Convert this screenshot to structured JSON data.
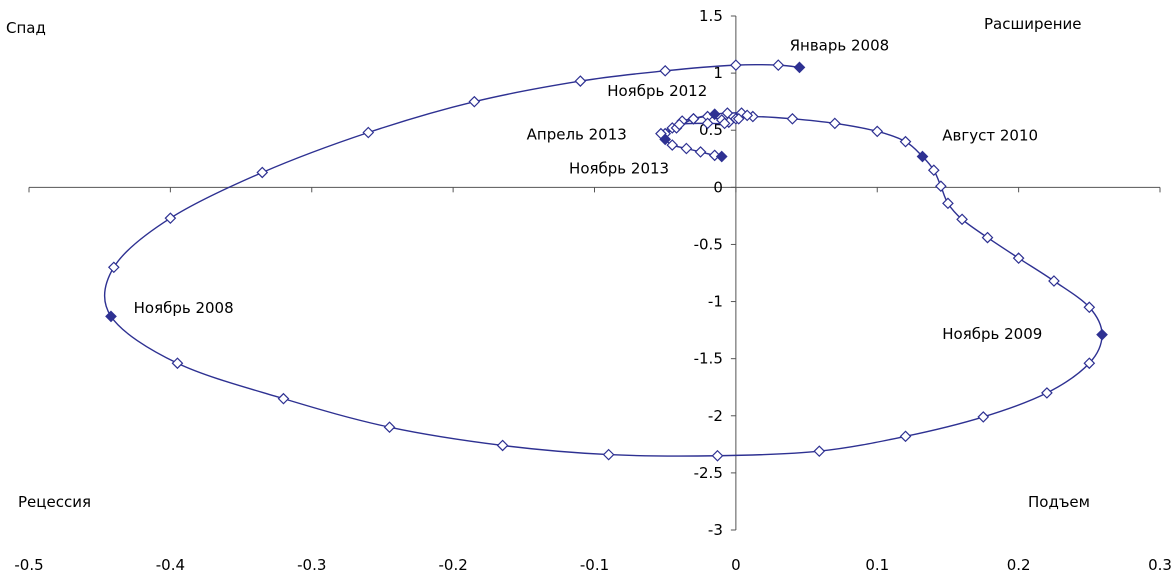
{
  "chart_data": {
    "type": "scatter",
    "title": "",
    "xlabel": "",
    "ylabel": "",
    "xlim": [
      -0.5,
      0.3
    ],
    "ylim": [
      -3,
      1.5
    ],
    "x_ticks": [
      "-0.5",
      "-0.4",
      "-0.3",
      "-0.2",
      "-0.1",
      "0",
      "0.1",
      "0.2",
      "0.3"
    ],
    "y_ticks": [
      "1.5",
      "1",
      "0.5",
      "0",
      "-0.5",
      "-1",
      "-1.5",
      "-2",
      "-2.5",
      "-3"
    ],
    "grid": false,
    "quadrant_labels": {
      "top_left": "Спад",
      "top_right": "Расширение",
      "bottom_left": "Рецессия",
      "bottom_right": "Подъем"
    },
    "colors": {
      "series": "#2e3192",
      "axis": "#555555"
    },
    "points": [
      {
        "x": 0.045,
        "y": 1.05,
        "highlight": true
      },
      {
        "x": 0.03,
        "y": 1.07
      },
      {
        "x": 0.0,
        "y": 1.07
      },
      {
        "x": -0.05,
        "y": 1.02
      },
      {
        "x": -0.11,
        "y": 0.93
      },
      {
        "x": -0.185,
        "y": 0.75
      },
      {
        "x": -0.26,
        "y": 0.48
      },
      {
        "x": -0.335,
        "y": 0.13
      },
      {
        "x": -0.4,
        "y": -0.27
      },
      {
        "x": -0.44,
        "y": -0.7
      },
      {
        "x": -0.442,
        "y": -1.13,
        "highlight": true
      },
      {
        "x": -0.395,
        "y": -1.54
      },
      {
        "x": -0.32,
        "y": -1.85
      },
      {
        "x": -0.245,
        "y": -2.1
      },
      {
        "x": -0.165,
        "y": -2.26
      },
      {
        "x": -0.09,
        "y": -2.34
      },
      {
        "x": -0.013,
        "y": -2.35
      },
      {
        "x": 0.059,
        "y": -2.31
      },
      {
        "x": 0.12,
        "y": -2.18
      },
      {
        "x": 0.175,
        "y": -2.01
      },
      {
        "x": 0.22,
        "y": -1.8
      },
      {
        "x": 0.25,
        "y": -1.54
      },
      {
        "x": 0.259,
        "y": -1.29,
        "highlight": true
      },
      {
        "x": 0.25,
        "y": -1.05
      },
      {
        "x": 0.225,
        "y": -0.82
      },
      {
        "x": 0.2,
        "y": -0.62
      },
      {
        "x": 0.178,
        "y": -0.44
      },
      {
        "x": 0.16,
        "y": -0.28
      },
      {
        "x": 0.15,
        "y": -0.14
      },
      {
        "x": 0.145,
        "y": 0.01
      },
      {
        "x": 0.14,
        "y": 0.15
      },
      {
        "x": 0.132,
        "y": 0.27,
        "highlight": true
      },
      {
        "x": 0.12,
        "y": 0.4
      },
      {
        "x": 0.1,
        "y": 0.49
      },
      {
        "x": 0.07,
        "y": 0.56
      },
      {
        "x": 0.04,
        "y": 0.6
      },
      {
        "x": 0.012,
        "y": 0.62
      },
      {
        "x": 0.0,
        "y": 0.6
      },
      {
        "x": -0.005,
        "y": 0.57
      },
      {
        "x": -0.01,
        "y": 0.59
      },
      {
        "x": -0.02,
        "y": 0.62
      },
      {
        "x": -0.03,
        "y": 0.6
      },
      {
        "x": -0.038,
        "y": 0.58
      },
      {
        "x": -0.045,
        "y": 0.52
      },
      {
        "x": -0.05,
        "y": 0.47
      },
      {
        "x": -0.042,
        "y": 0.52
      },
      {
        "x": -0.03,
        "y": 0.6
      },
      {
        "x": -0.015,
        "y": 0.64,
        "highlight": true
      },
      {
        "x": -0.006,
        "y": 0.65
      },
      {
        "x": 0.004,
        "y": 0.65
      },
      {
        "x": 0.008,
        "y": 0.63
      },
      {
        "x": 0.002,
        "y": 0.6
      },
      {
        "x": -0.008,
        "y": 0.56
      },
      {
        "x": -0.02,
        "y": 0.56
      },
      {
        "x": -0.04,
        "y": 0.55
      },
      {
        "x": -0.053,
        "y": 0.47
      },
      {
        "x": -0.05,
        "y": 0.42,
        "highlight": true
      },
      {
        "x": -0.045,
        "y": 0.37
      },
      {
        "x": -0.035,
        "y": 0.34
      },
      {
        "x": -0.025,
        "y": 0.31
      },
      {
        "x": -0.015,
        "y": 0.28
      },
      {
        "x": -0.01,
        "y": 0.27,
        "highlight": true
      }
    ],
    "annotations": [
      {
        "text": "Январь 2008",
        "x": 0.038,
        "y": 1.2
      },
      {
        "text": "Ноябрь 2012",
        "x": -0.091,
        "y": 0.8
      },
      {
        "text": "Август 2010",
        "x": 0.146,
        "y": 0.41
      },
      {
        "text": "Апрель 2013",
        "x": -0.148,
        "y": 0.42
      },
      {
        "text": "Ноябрь 2013",
        "x": -0.118,
        "y": 0.12
      },
      {
        "text": "Ноябрь 2008",
        "x": -0.426,
        "y": -1.1
      },
      {
        "text": "Ноябрь 2009",
        "x": 0.146,
        "y": -1.33
      }
    ]
  }
}
